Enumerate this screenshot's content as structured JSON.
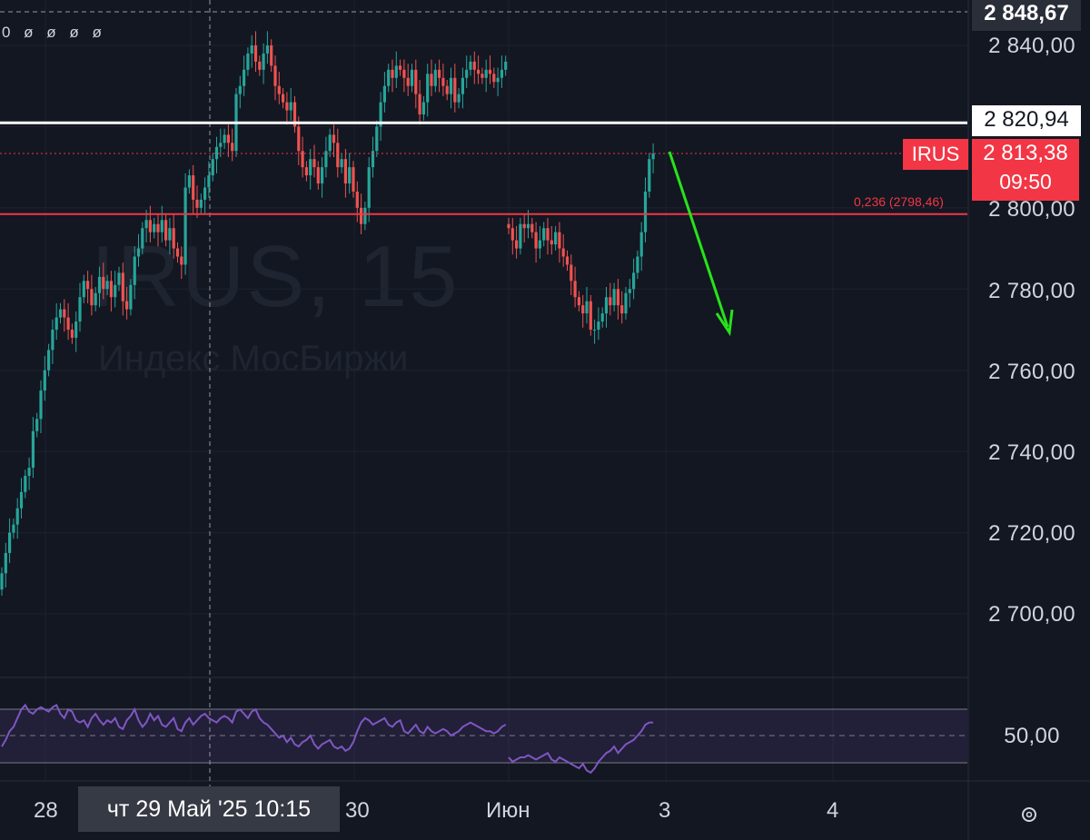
{
  "symbol": {
    "ticker": "IRUS",
    "interval": "15",
    "watermark_title": "IRUS, 15",
    "watermark_subtitle": "Индекс МосБиржи",
    "ohlc_values": "0 ø ø ø ø"
  },
  "price_axis": {
    "ticks": [
      "2 840,00",
      "2 800,00",
      "2 780,00",
      "2 760,00",
      "2 740,00",
      "2 720,00",
      "2 700,00"
    ],
    "top_label": "2 848,67",
    "hline_label": "2 820,94",
    "last_price_ticker": "IRUS",
    "last_price": "2 813,38",
    "last_price_countdown": "09:50"
  },
  "time_axis": {
    "labels": [
      "28",
      "30",
      "Июн",
      "3",
      "4"
    ],
    "crosshair": "чт 29 Май '25   10:15"
  },
  "fib": {
    "label": "0,236 (2798,46)",
    "level": 2798.46
  },
  "indicator": {
    "level_label": "50,00"
  },
  "colors": {
    "background": "#131722",
    "up": "#26a69a",
    "down": "#ef5350",
    "fib_line": "#f23645",
    "hline": "#ffffff",
    "arrow": "#27e31a",
    "rsi": "#7e57c2",
    "grid": "#1e222d"
  },
  "chart_data": {
    "type": "candlestick",
    "title": "IRUS, 15",
    "subtitle": "Индекс МосБиржи",
    "y_range": [
      2690,
      2850
    ],
    "horizontal_lines": [
      2820.94,
      2798.46
    ],
    "last_price": 2813.38,
    "x_labels": [
      "28",
      "30",
      "Июн",
      "3",
      "4"
    ],
    "series": [
      {
        "name": "IRUS",
        "type": "candlestick",
        "close": [
          2710,
          2715,
          2720,
          2722,
          2726,
          2730,
          2734,
          2736,
          2745,
          2748,
          2755,
          2760,
          2765,
          2770,
          2773,
          2775,
          2773,
          2770,
          2768,
          2772,
          2778,
          2782,
          2780,
          2776,
          2779,
          2783,
          2780,
          2782,
          2778,
          2781,
          2784,
          2777,
          2775,
          2781,
          2788,
          2790,
          2795,
          2797,
          2794,
          2796,
          2794,
          2797,
          2792,
          2795,
          2790,
          2788,
          2786,
          2805,
          2808,
          2802,
          2800,
          2802,
          2805,
          2808,
          2812,
          2815,
          2816,
          2818,
          2816,
          2814,
          2828,
          2830,
          2834,
          2838,
          2840,
          2836,
          2834,
          2838,
          2840,
          2835,
          2830,
          2828,
          2826,
          2824,
          2826,
          2820,
          2814,
          2810,
          2808,
          2812,
          2810,
          2806,
          2810,
          2814,
          2818,
          2816,
          2810,
          2812,
          2806,
          2810,
          2804,
          2800,
          2796,
          2800,
          2810,
          2814,
          2820,
          2826,
          2830,
          2834,
          2832,
          2835,
          2834,
          2832,
          2830,
          2834,
          2828,
          2823,
          2826,
          2833,
          2830,
          2834,
          2832,
          2830,
          2828,
          2832,
          2826,
          2828,
          2832,
          2834,
          2836,
          2834,
          2833,
          2832,
          2834,
          2833,
          2831,
          2832,
          2834,
          2836
        ],
        "close_after_gap": [
          2795,
          2792,
          2790,
          2796,
          2795,
          2796,
          2794,
          2790,
          2792,
          2795,
          2792,
          2791,
          2794,
          2790,
          2788,
          2786,
          2782,
          2778,
          2776,
          2774,
          2777,
          2770,
          2770,
          2772,
          2774,
          2778,
          2776,
          2780,
          2776,
          2774,
          2779,
          2780,
          2784,
          2788,
          2794,
          2804,
          2812,
          2813.38
        ]
      }
    ],
    "indicator": {
      "name": "RSI",
      "level": 50,
      "values": [
        45,
        48,
        52,
        54,
        58,
        62,
        64,
        61,
        60,
        62,
        63,
        62,
        61,
        63,
        64,
        60,
        58,
        62,
        61,
        57,
        56,
        57,
        54,
        58,
        60,
        57,
        55,
        57,
        56,
        58,
        54,
        53,
        57,
        59,
        62,
        57,
        54,
        56,
        60,
        57,
        59,
        55,
        54,
        56,
        58,
        53,
        52,
        56,
        58,
        55,
        57,
        59,
        60,
        58,
        57,
        56,
        58,
        59,
        58,
        56,
        61,
        62,
        60,
        58,
        61,
        62,
        58,
        56,
        55,
        53,
        51,
        49,
        50,
        47,
        49,
        46,
        45,
        47,
        48,
        50,
        46,
        44,
        46,
        47,
        48,
        45,
        44,
        45,
        43,
        44,
        47,
        52,
        56,
        58,
        57,
        55,
        56,
        57,
        58,
        55,
        54,
        56,
        57,
        52,
        51,
        53,
        55,
        52,
        51,
        54,
        52,
        51,
        52,
        53,
        52,
        50,
        51,
        52,
        54,
        55,
        56,
        55,
        54,
        53,
        52,
        52,
        51,
        52,
        54,
        55
      ],
      "values_after_gap": [
        40,
        38,
        39,
        40,
        40,
        41,
        40,
        39,
        40,
        41,
        42,
        39,
        38,
        40,
        39,
        38,
        37,
        36,
        35,
        37,
        34,
        33,
        35,
        38,
        40,
        42,
        43,
        45,
        42,
        44,
        46,
        47,
        48,
        50,
        52,
        55,
        56,
        56
      ]
    }
  }
}
